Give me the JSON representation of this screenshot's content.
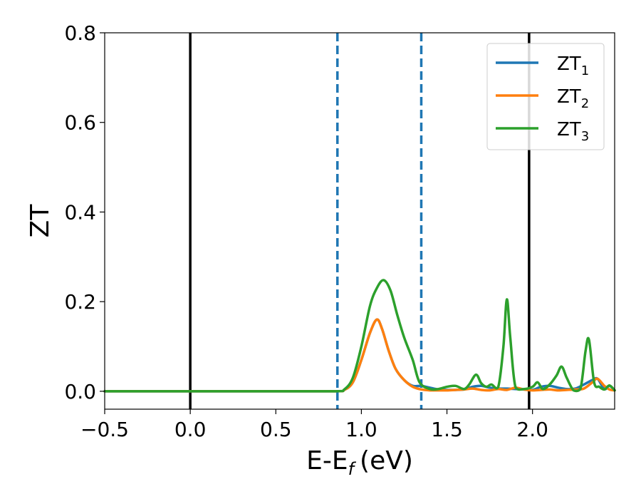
{
  "chart_data": {
    "type": "line",
    "xlabel": "E-E",
    "xlabel_subscript": "f",
    "xlabel_unit": "(eV)",
    "ylabel": "ZT",
    "xlim": [
      -0.5,
      2.48
    ],
    "ylim": [
      -0.04,
      0.8
    ],
    "xticks": [
      "−0.5",
      "0.0",
      "0.5",
      "1.0",
      "1.5",
      "2.0"
    ],
    "xtick_values": [
      -0.5,
      0.0,
      0.5,
      1.0,
      1.5,
      2.0
    ],
    "yticks": [
      "0.0",
      "0.2",
      "0.4",
      "0.6",
      "0.8"
    ],
    "ytick_values": [
      0.0,
      0.2,
      0.4,
      0.6,
      0.8
    ],
    "grid": false,
    "legend_position": "top-right",
    "vertical_lines": [
      {
        "x": 0.0,
        "style": "solid",
        "color": "#000000"
      },
      {
        "x": 1.98,
        "style": "solid",
        "color": "#000000"
      },
      {
        "x": 0.86,
        "style": "dashed",
        "color": "#1f77b4"
      },
      {
        "x": 1.35,
        "style": "dashed",
        "color": "#1f77b4"
      }
    ],
    "series": [
      {
        "name": "ZT",
        "subscript": "1",
        "color": "#1f77b4",
        "x": [
          -0.5,
          0.0,
          0.5,
          0.85,
          0.9,
          0.95,
          1.0,
          1.05,
          1.09,
          1.12,
          1.16,
          1.2,
          1.25,
          1.3,
          1.35,
          1.4,
          1.45,
          1.5,
          1.55,
          1.6,
          1.65,
          1.7,
          1.75,
          1.8,
          1.85,
          1.9,
          1.95,
          2.0,
          2.05,
          2.1,
          2.15,
          2.2,
          2.25,
          2.3,
          2.35,
          2.38,
          2.42,
          2.45,
          2.48
        ],
        "y": [
          0,
          0,
          0,
          0,
          0.003,
          0.02,
          0.07,
          0.13,
          0.16,
          0.14,
          0.09,
          0.05,
          0.025,
          0.012,
          0.012,
          0.008,
          0.004,
          0.003,
          0.003,
          0.004,
          0.01,
          0.012,
          0.008,
          0.006,
          0.006,
          0.005,
          0.004,
          0.003,
          0.01,
          0.012,
          0.008,
          0.005,
          0.006,
          0.015,
          0.025,
          0.028,
          0.005,
          0.012,
          0.002
        ]
      },
      {
        "name": "ZT",
        "subscript": "2",
        "color": "#ff7f0e",
        "x": [
          -0.5,
          0.0,
          0.5,
          0.85,
          0.9,
          0.95,
          1.0,
          1.05,
          1.09,
          1.12,
          1.16,
          1.2,
          1.25,
          1.3,
          1.35,
          1.4,
          1.45,
          1.5,
          1.55,
          1.6,
          1.65,
          1.7,
          1.75,
          1.8,
          1.85,
          1.9,
          1.95,
          2.0,
          2.05,
          2.1,
          2.15,
          2.2,
          2.25,
          2.3,
          2.35,
          2.38,
          2.42,
          2.45,
          2.48
        ],
        "y": [
          0,
          0,
          0,
          0,
          0.003,
          0.02,
          0.07,
          0.13,
          0.16,
          0.14,
          0.09,
          0.05,
          0.025,
          0.01,
          0.004,
          0.002,
          0.002,
          0.002,
          0.003,
          0.004,
          0.006,
          0.003,
          0.002,
          0.005,
          0.003,
          0.008,
          0.004,
          0.002,
          0.003,
          0.004,
          0.002,
          0.003,
          0.004,
          0.006,
          0.02,
          0.028,
          0.012,
          0.004,
          0.002
        ]
      },
      {
        "name": "ZT",
        "subscript": "3",
        "color": "#2ca02c",
        "x": [
          -0.5,
          0.0,
          0.5,
          0.85,
          0.9,
          0.95,
          1.0,
          1.05,
          1.09,
          1.13,
          1.17,
          1.21,
          1.25,
          1.3,
          1.34,
          1.4,
          1.45,
          1.5,
          1.55,
          1.6,
          1.63,
          1.67,
          1.7,
          1.73,
          1.76,
          1.8,
          1.83,
          1.85,
          1.87,
          1.9,
          1.95,
          2.0,
          2.03,
          2.06,
          2.1,
          2.14,
          2.17,
          2.2,
          2.24,
          2.28,
          2.31,
          2.33,
          2.36,
          2.39,
          2.42,
          2.45,
          2.48
        ],
        "y": [
          0,
          0,
          0,
          0,
          0.004,
          0.03,
          0.1,
          0.19,
          0.23,
          0.248,
          0.225,
          0.17,
          0.12,
          0.07,
          0.02,
          0.005,
          0.005,
          0.01,
          0.012,
          0.005,
          0.015,
          0.037,
          0.018,
          0.01,
          0.015,
          0.01,
          0.1,
          0.205,
          0.12,
          0.01,
          0.005,
          0.01,
          0.02,
          0.005,
          0.015,
          0.035,
          0.055,
          0.03,
          0.002,
          0.005,
          0.09,
          0.115,
          0.02,
          0.01,
          0.004,
          0.013,
          0.002
        ]
      }
    ]
  }
}
